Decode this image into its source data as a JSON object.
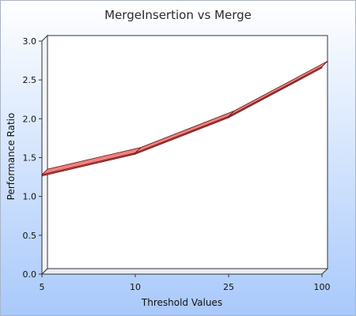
{
  "chart_data": {
    "type": "line",
    "title": "MergeInsertion vs Merge",
    "xlabel": "Threshold Values",
    "ylabel": "Performance Ratio",
    "categories": [
      "5",
      "10",
      "25",
      "100"
    ],
    "series": [
      {
        "values": [
          1.28,
          1.56,
          2.03,
          2.67
        ]
      }
    ],
    "ylim": [
      0,
      3.0
    ],
    "yticks": [
      "0.0",
      "0.5",
      "1.0",
      "1.5",
      "2.0",
      "2.5",
      "3.0"
    ],
    "grid": false,
    "legend": "none",
    "style": "3d-ribbon"
  },
  "colors": {
    "background_top": "#ffffff",
    "background_bottom": "#a9c9fb",
    "plot_fill": "#ffffff",
    "ribbon_top": "#f08080",
    "ribbon_front": "#e05050",
    "ribbon_edge": "#5a1010",
    "axis": "#333333",
    "frame": "#aab4c4"
  }
}
